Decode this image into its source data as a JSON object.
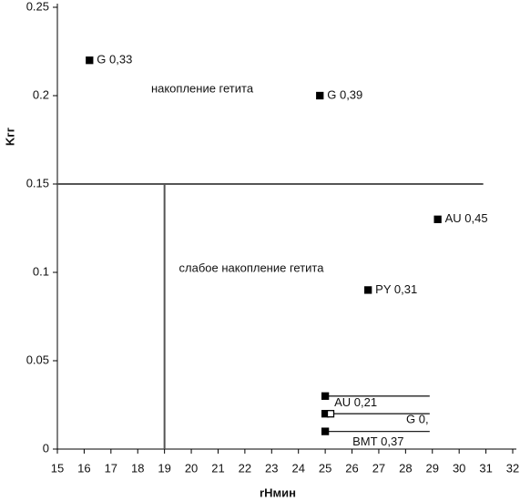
{
  "chart_data": {
    "type": "scatter",
    "x_label": "rHмин",
    "y_label": "Kгг",
    "xlim": [
      15,
      32
    ],
    "xticks": [
      15,
      16,
      17,
      18,
      19,
      20,
      21,
      22,
      23,
      24,
      25,
      26,
      27,
      28,
      29,
      30,
      31,
      32
    ],
    "ylim": [
      0,
      0.25
    ],
    "yticks": [
      0,
      0.05,
      0.1,
      0.15,
      0.2,
      0.25
    ],
    "series": [
      {
        "color": "#000000",
        "x": [
          16.2,
          24.8,
          29.2,
          26.6,
          25,
          25,
          25.2,
          25
        ],
        "values": [
          0.22,
          0.2,
          0.13,
          0.09,
          0.03,
          0.02,
          0.02,
          0.01
        ],
        "labels": [
          "G 0,33",
          "G 0,39",
          "AU 0,45",
          "PY 0,31",
          "AU 0,21",
          null,
          "G 0,",
          "ВМТ 0,37"
        ],
        "hollow": [
          false,
          false,
          false,
          false,
          false,
          false,
          true,
          false
        ]
      }
    ],
    "segments": {
      "x": [
        25,
        25,
        25
      ],
      "x_end": [
        28.9,
        28.9,
        28.9
      ],
      "y": [
        0.03,
        0.02,
        0.01
      ]
    },
    "reference_lines": [
      {
        "axis": "y",
        "value": 0.15,
        "extent": [
          15,
          30.9
        ]
      },
      {
        "axis": "x",
        "value": 19,
        "extent": [
          0,
          0.15
        ]
      }
    ],
    "annotations": [
      "накопление гетита",
      "слабое накопление гетита"
    ]
  }
}
